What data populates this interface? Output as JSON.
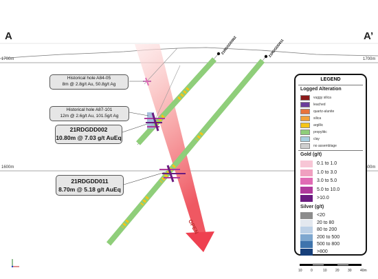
{
  "section": {
    "start_label": "A",
    "end_label": "A’"
  },
  "elevations": {
    "upper": "1700m",
    "lower": "1600m"
  },
  "holes": {
    "hole1_name": "21RDGDD002",
    "hole2_name": "21RDGDD011"
  },
  "callouts": {
    "historical_a84": {
      "title": "Historical hole A84-05",
      "detail": "8m @ 2.8g/t Au, 50.8g/t Ag"
    },
    "historical_a87": {
      "title": "Historical hole A87-101",
      "detail": "12m @ 2.6g/t Au, 101.5g/t Ag"
    },
    "hole_002": {
      "title": "21RDGDD002",
      "detail": "10.80m @ 7.03 g/t AuEq"
    },
    "hole_011": {
      "title": "21RDGDD011",
      "detail": "8.70m @ 5.18 g/t AuEq"
    }
  },
  "open_label": "OPEN",
  "legend": {
    "title": "LEGEND",
    "alteration_title": "Logged Alteration",
    "alteration": [
      {
        "label": "vuggy silica",
        "color": "#8b1a1a"
      },
      {
        "label": "leached",
        "color": "#6a3d9a"
      },
      {
        "label": "quartz-alunite",
        "color": "#e8743b"
      },
      {
        "label": "silica",
        "color": "#f2a33a"
      },
      {
        "label": "argillic",
        "color": "#f5c518"
      },
      {
        "label": "propylitic",
        "color": "#8fce7a"
      },
      {
        "label": "clay",
        "color": "#a8cfe0"
      },
      {
        "label": "no assemblage",
        "color": "#cfcfcf"
      }
    ],
    "gold_title": "Gold (g/t)",
    "gold": [
      {
        "label": "0.1 to 1.0",
        "color": "#f7c6d6"
      },
      {
        "label": "1.0 to 3.0",
        "color": "#f0a0c0"
      },
      {
        "label": "3.0 to 5.0",
        "color": "#e06bb4"
      },
      {
        "label": "5.0 to 10.0",
        "color": "#b03a9c"
      },
      {
        "label": ">10.0",
        "color": "#6a1b80"
      }
    ],
    "silver_title": "Silver (g/t)",
    "silver": [
      {
        "label": "<20",
        "color": "#8c8c8c"
      },
      {
        "label": "20 to 80",
        "color": "#e3e8ef"
      },
      {
        "label": "80 to 200",
        "color": "#bcd0e6"
      },
      {
        "label": "200 to 500",
        "color": "#7ea7cf"
      },
      {
        "label": "500 to 800",
        "color": "#3f74ad"
      },
      {
        "label": ">800",
        "color": "#163f7a"
      }
    ]
  },
  "scale": {
    "ticks": [
      "10",
      "0",
      "10",
      "20",
      "30",
      "40m"
    ]
  }
}
